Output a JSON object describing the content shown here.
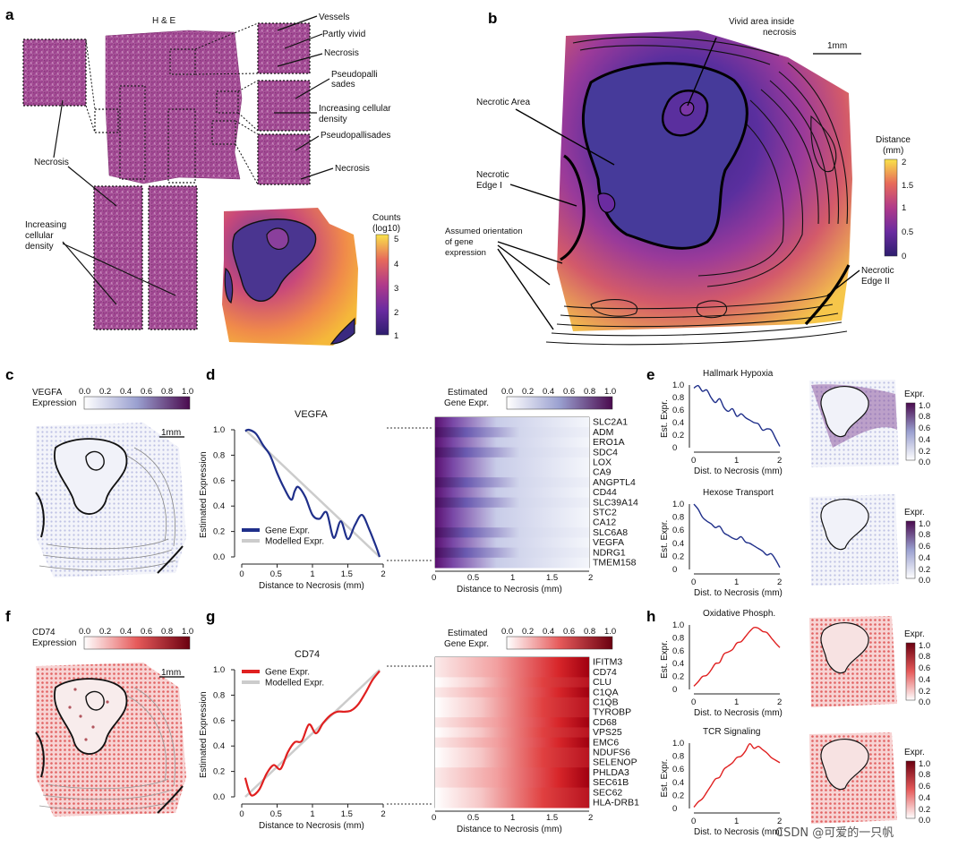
{
  "panels": {
    "a": {
      "label": "a",
      "he_title": "H & E",
      "annotations": {
        "vessels": "Vessels",
        "partly_vivid": "Partly vivid",
        "necrosis_top": "Necrosis",
        "pseudopallisades_1": "Pseudopalli",
        "pseudopallisades_2": "sades",
        "increasing_density_1": "Increasing cellular",
        "increasing_density_2": "density",
        "pseudopallisades_b": "Pseudopallisades",
        "necrosis_right": "Necrosis",
        "necrosis_left": "Necrosis",
        "left_density_1": "Increasing",
        "left_density_2": "cellular",
        "left_density_3": "density"
      },
      "counts_title_1": "Counts",
      "counts_title_2": "(log10)",
      "counts_ticks": [
        "5",
        "4",
        "3",
        "2",
        "1"
      ]
    },
    "b": {
      "label": "b",
      "annotations": {
        "vivid_1": "Vivid area inside",
        "vivid_2": "necrosis",
        "necrotic_area": "Necrotic Area",
        "edge1_1": "Necrotic",
        "edge1_2": "Edge I",
        "orient_1": "Assumed orientation",
        "orient_2": "of gene",
        "orient_3": "expression",
        "edge2_1": "Necrotic",
        "edge2_2": "Edge II"
      },
      "scale": "1mm",
      "distance_title_1": "Distance",
      "distance_title_2": "(mm)",
      "distance_ticks": [
        "2",
        "1.5",
        "1",
        "0.5",
        "0"
      ]
    },
    "c": {
      "label": "c",
      "title_1": "VEGFA",
      "title_2": "Expression",
      "ticks": [
        "0.0",
        "0.2",
        "0.4",
        "0.6",
        "0.8",
        "1.0"
      ],
      "scale": "1mm"
    },
    "d": {
      "label": "d",
      "heatmap_title_1": "Estimated",
      "heatmap_title_2": "Gene Expr.",
      "heat_ticks": [
        "0.0",
        "0.2",
        "0.4",
        "0.6",
        "0.8",
        "1.0"
      ],
      "genes": [
        "SLC2A1",
        "ADM",
        "ERO1A",
        "SDC4",
        "LOX",
        "CA9",
        "ANGPTL4",
        "CD44",
        "SLC39A14",
        "STC2",
        "CA12",
        "SLC6A8",
        "VEGFA",
        "NDRG1",
        "TMEM158"
      ],
      "heat_xlabel": "Distance to Necrosis (mm)"
    },
    "e": {
      "label": "e",
      "expr_label": "Expr.",
      "cbar_ticks": [
        "1.0",
        "0.8",
        "0.6",
        "0.4",
        "0.2",
        "0.0"
      ]
    },
    "f": {
      "label": "f",
      "title_1": "CD74",
      "title_2": "Expression",
      "ticks": [
        "0.0",
        "0.2",
        "0.4",
        "0.6",
        "0.8",
        "1.0"
      ],
      "scale": "1mm"
    },
    "g": {
      "label": "g",
      "heatmap_title_1": "Estimated",
      "heatmap_title_2": "Gene Expr.",
      "heat_ticks": [
        "0.0",
        "0.2",
        "0.4",
        "0.6",
        "0.8",
        "1.0"
      ],
      "genes": [
        "IFITM3",
        "CD74",
        "CLU",
        "C1QA",
        "C1QB",
        "TYROBP",
        "CD68",
        "VPS25",
        "EMC6",
        "NDUFS6",
        "SELENOP",
        "PHLDA3",
        "SEC61B",
        "SEC62",
        "HLA-DRB1"
      ],
      "heat_xlabel": "Distance to Necrosis (mm)"
    },
    "h": {
      "label": "h",
      "expr_label": "Expr.",
      "cbar_ticks": [
        "1.0",
        "0.8",
        "0.6",
        "0.4",
        "0.2",
        "0.0"
      ]
    }
  },
  "watermark": "CSDN @可爱的一只帆",
  "chart_data": [
    {
      "type": "line",
      "panel": "d",
      "title": "VEGFA",
      "xlabel": "Distance to Necrosis (mm)",
      "ylabel": "Estimated Expression",
      "xlim": [
        0,
        2
      ],
      "ylim": [
        0,
        1
      ],
      "xticks": [
        "0",
        "0.5",
        "1",
        "1.5",
        "2"
      ],
      "yticks": [
        "0.0",
        "0.2",
        "0.4",
        "0.6",
        "0.8",
        "1.0"
      ],
      "legend": [
        "Gene Expr.",
        "Modelled Expr."
      ],
      "colors": [
        "#1f2f8a",
        "#cccccc"
      ],
      "series": [
        {
          "name": "Gene Expr.",
          "x": [
            0.05,
            0.1,
            0.2,
            0.3,
            0.4,
            0.5,
            0.6,
            0.7,
            0.75,
            0.8,
            0.9,
            1.0,
            1.1,
            1.2,
            1.3,
            1.4,
            1.5,
            1.6,
            1.7,
            1.8,
            1.9,
            1.95
          ],
          "values": [
            0.99,
            1.0,
            0.97,
            0.88,
            0.8,
            0.66,
            0.54,
            0.45,
            0.52,
            0.55,
            0.47,
            0.33,
            0.3,
            0.35,
            0.15,
            0.28,
            0.14,
            0.25,
            0.33,
            0.22,
            0.08,
            0.0
          ]
        },
        {
          "name": "Modelled Expr.",
          "x": [
            0.05,
            1.95
          ],
          "values": [
            1.0,
            0.0
          ]
        }
      ]
    },
    {
      "type": "line",
      "panel": "g",
      "title": "CD74",
      "xlabel": "Distance to Necrosis (mm)",
      "ylabel": "Estimated Expression",
      "xlim": [
        0,
        2
      ],
      "ylim": [
        0,
        1
      ],
      "xticks": [
        "0",
        "0.5",
        "1",
        "1.5",
        "2"
      ],
      "yticks": [
        "0.0",
        "0.2",
        "0.4",
        "0.6",
        "0.8",
        "1.0"
      ],
      "legend": [
        "Gene Expr.",
        "Modelled Expr."
      ],
      "colors": [
        "#e02020",
        "#cccccc"
      ],
      "series": [
        {
          "name": "Gene Expr.",
          "x": [
            0.05,
            0.1,
            0.15,
            0.25,
            0.35,
            0.45,
            0.55,
            0.65,
            0.75,
            0.85,
            0.95,
            1.05,
            1.15,
            1.25,
            1.35,
            1.45,
            1.55,
            1.65,
            1.75,
            1.85,
            1.95
          ],
          "values": [
            0.15,
            0.05,
            0.01,
            0.06,
            0.18,
            0.25,
            0.22,
            0.35,
            0.43,
            0.44,
            0.57,
            0.5,
            0.58,
            0.64,
            0.67,
            0.67,
            0.68,
            0.73,
            0.82,
            0.92,
            0.99
          ]
        },
        {
          "name": "Modelled Expr.",
          "x": [
            0.05,
            1.95
          ],
          "values": [
            0.0,
            1.0
          ]
        }
      ]
    },
    {
      "type": "line",
      "panel": "e",
      "title": "Hallmark Hypoxia",
      "xlabel": "Dist. to Necrosis (mm)",
      "ylabel": "Est. Expr.",
      "xticks": [
        "0",
        "1",
        "2"
      ],
      "yticks": [
        "0",
        "0.2",
        "0.4",
        "0.6",
        "0.8",
        "1.0"
      ],
      "color": "#1f2f8a",
      "x": [
        0,
        0.1,
        0.2,
        0.3,
        0.4,
        0.5,
        0.6,
        0.7,
        0.8,
        0.9,
        1.0,
        1.1,
        1.2,
        1.3,
        1.4,
        1.5,
        1.6,
        1.7,
        1.8,
        1.9,
        2.0
      ],
      "values": [
        0.95,
        0.99,
        0.9,
        0.92,
        0.8,
        0.72,
        0.78,
        0.64,
        0.58,
        0.62,
        0.5,
        0.54,
        0.48,
        0.44,
        0.4,
        0.38,
        0.28,
        0.3,
        0.28,
        0.15,
        0.02
      ]
    },
    {
      "type": "line",
      "panel": "e",
      "title": "Hexose Transport",
      "xlabel": "Dist. to Necrosis (mm)",
      "ylabel": "Est. Expr.",
      "xticks": [
        "0",
        "1",
        "2"
      ],
      "yticks": [
        "0",
        "0.2",
        "0.4",
        "0.6",
        "0.8",
        "1.0"
      ],
      "color": "#1f2f8a",
      "x": [
        0,
        0.1,
        0.2,
        0.3,
        0.4,
        0.5,
        0.6,
        0.7,
        0.8,
        0.9,
        1.0,
        1.1,
        1.2,
        1.3,
        1.4,
        1.5,
        1.6,
        1.7,
        1.8,
        1.9,
        2.0
      ],
      "values": [
        1.0,
        0.92,
        0.8,
        0.74,
        0.7,
        0.64,
        0.66,
        0.56,
        0.52,
        0.48,
        0.46,
        0.5,
        0.42,
        0.4,
        0.36,
        0.32,
        0.28,
        0.22,
        0.24,
        0.15,
        0.03
      ]
    },
    {
      "type": "line",
      "panel": "h",
      "title": "Oxidative Phosph.",
      "xlabel": "Dist. to Necrosis (mm)",
      "ylabel": "Est. Expr.",
      "xticks": [
        "0",
        "1",
        "2"
      ],
      "yticks": [
        "0",
        "0.2",
        "0.4",
        "0.6",
        "0.8",
        "1.0"
      ],
      "color": "#e02020",
      "x": [
        0,
        0.1,
        0.2,
        0.3,
        0.4,
        0.5,
        0.6,
        0.7,
        0.8,
        0.9,
        1.0,
        1.1,
        1.2,
        1.3,
        1.4,
        1.5,
        1.6,
        1.7,
        1.8,
        1.9,
        2.0
      ],
      "values": [
        0.05,
        0.12,
        0.2,
        0.22,
        0.3,
        0.4,
        0.42,
        0.55,
        0.58,
        0.62,
        0.72,
        0.74,
        0.82,
        0.9,
        0.96,
        0.95,
        0.9,
        0.88,
        0.8,
        0.72,
        0.65
      ]
    },
    {
      "type": "line",
      "panel": "h",
      "title": "TCR Signaling",
      "xlabel": "Dist. to Necrosis (mm)",
      "ylabel": "Est. Expr.",
      "xticks": [
        "0",
        "1",
        "2"
      ],
      "yticks": [
        "0",
        "0.2",
        "0.4",
        "0.6",
        "0.8",
        "1.0"
      ],
      "color": "#e02020",
      "x": [
        0,
        0.1,
        0.2,
        0.3,
        0.4,
        0.5,
        0.6,
        0.7,
        0.8,
        0.9,
        1.0,
        1.1,
        1.2,
        1.3,
        1.4,
        1.5,
        1.6,
        1.7,
        1.8,
        1.9,
        2.0
      ],
      "values": [
        0.02,
        0.1,
        0.15,
        0.25,
        0.35,
        0.45,
        0.48,
        0.6,
        0.65,
        0.7,
        0.78,
        0.8,
        0.88,
        0.99,
        0.92,
        0.95,
        0.9,
        0.85,
        0.78,
        0.74,
        0.7
      ]
    }
  ]
}
